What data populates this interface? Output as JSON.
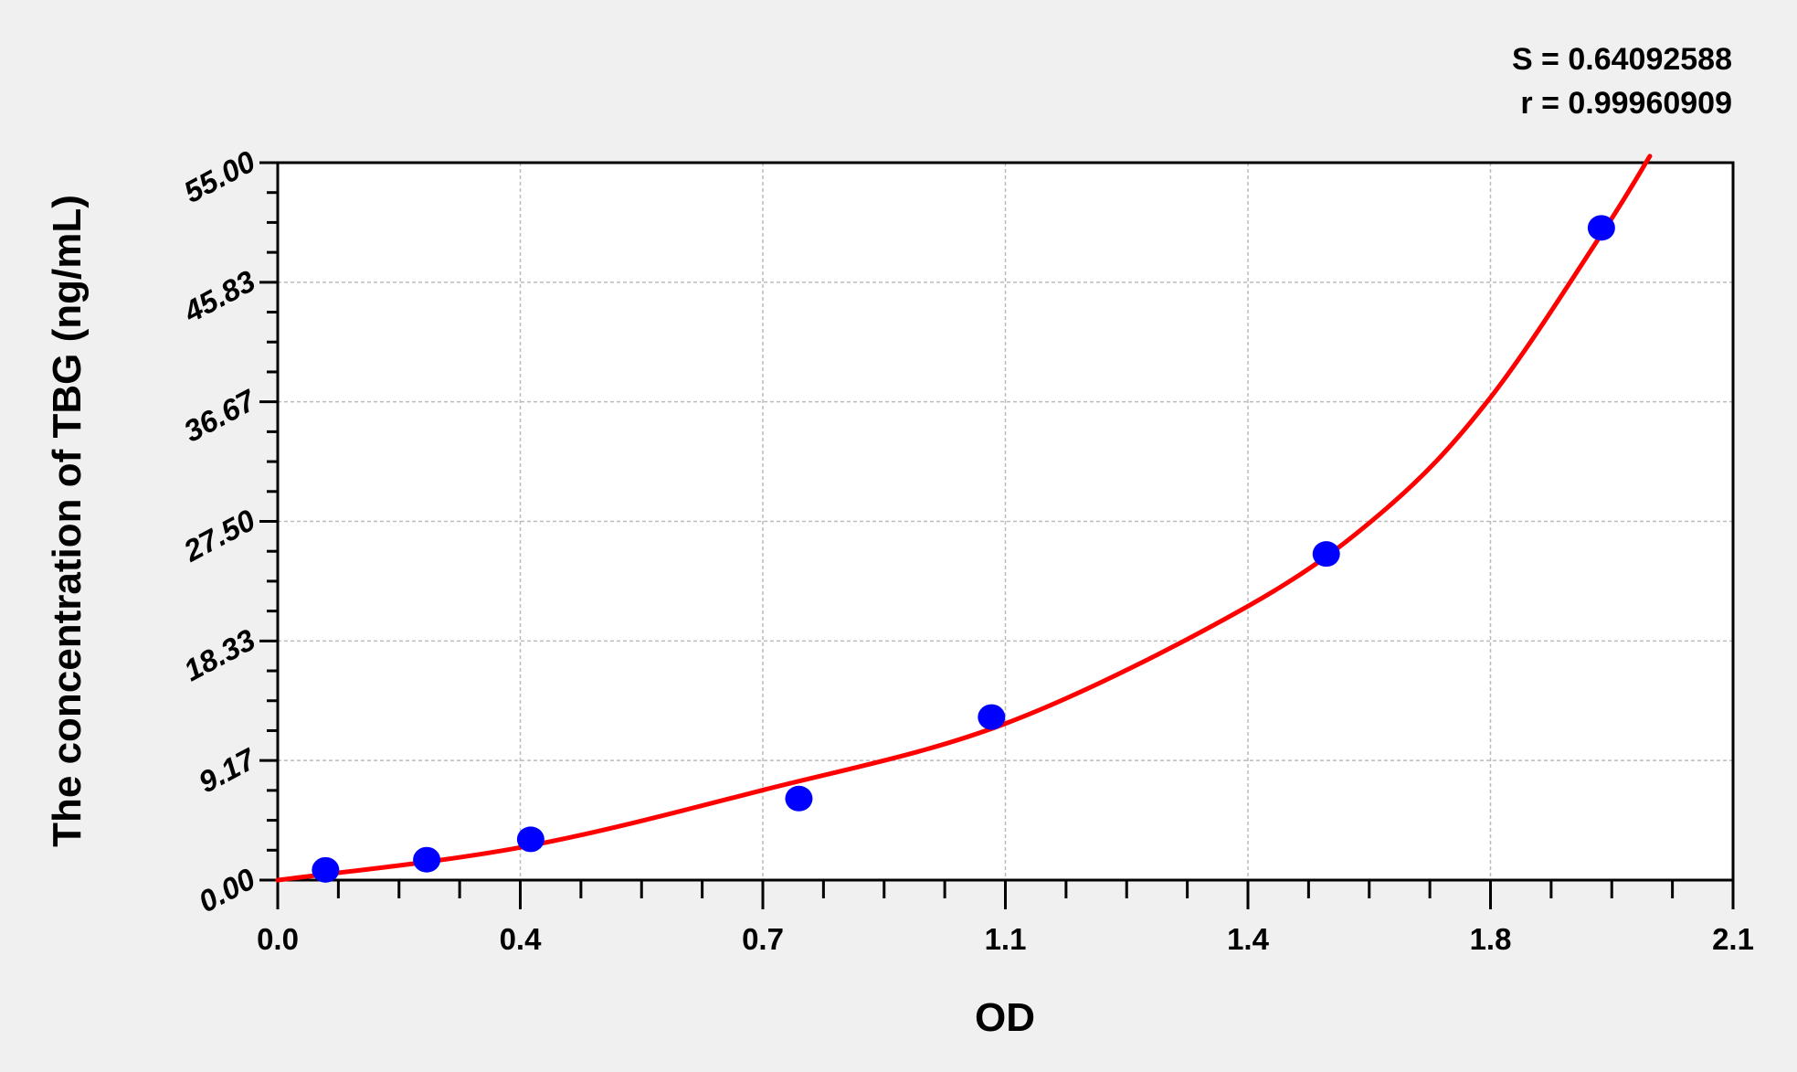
{
  "chart_data": {
    "type": "scatter",
    "title": "",
    "xlabel": "OD",
    "ylabel": "The concentration of TBG (ng/mL)",
    "xlim": [
      0,
      2.1
    ],
    "ylim": [
      0,
      55
    ],
    "x_ticks": [
      0,
      0.35,
      0.7,
      1.05,
      1.4,
      1.75,
      2.1
    ],
    "x_tick_labels": [
      "0.0",
      "0.4",
      "0.7",
      "1.1",
      "1.4",
      "1.8",
      "2.1"
    ],
    "y_ticks": [
      0,
      9.1667,
      18.3333,
      27.5,
      36.6667,
      45.8333,
      55
    ],
    "y_tick_labels": [
      "0.00",
      "9.17",
      "18.33",
      "27.50",
      "36.67",
      "45.83",
      "55.00"
    ],
    "minor_ticks_per_major": 4,
    "grid": true,
    "annotations": [
      "S = 0.64092588",
      "r = 0.99960909"
    ],
    "points": {
      "x": [
        0.069,
        0.215,
        0.365,
        0.752,
        1.03,
        1.513,
        1.91
      ],
      "y": [
        0.78,
        1.56,
        3.125,
        6.25,
        12.5,
        25,
        50
      ],
      "color": "#0000ff"
    },
    "fit_curve": {
      "color": "#ff0000",
      "x": [
        0,
        0.35,
        0.7,
        1.05,
        1.4,
        1.6,
        1.75,
        1.91,
        1.98
      ],
      "y": [
        0,
        2.5,
        6.9,
        12.0,
        21.0,
        28.5,
        37.0,
        49.5,
        55.5
      ]
    }
  }
}
